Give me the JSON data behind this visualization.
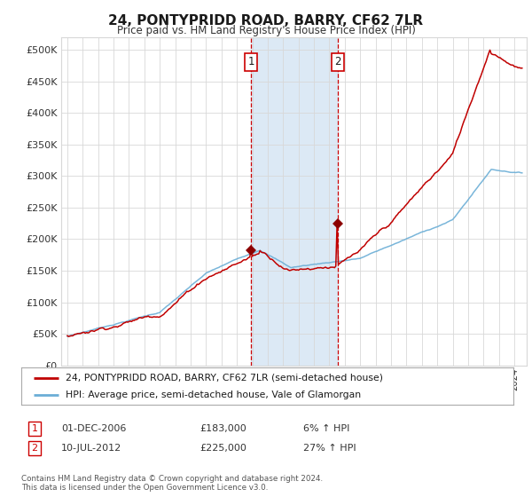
{
  "title": "24, PONTYPRIDD ROAD, BARRY, CF62 7LR",
  "subtitle": "Price paid vs. HM Land Registry's House Price Index (HPI)",
  "legend_line1": "24, PONTYPRIDD ROAD, BARRY, CF62 7LR (semi-detached house)",
  "legend_line2": "HPI: Average price, semi-detached house, Vale of Glamorgan",
  "footer": "Contains HM Land Registry data © Crown copyright and database right 2024.\nThis data is licensed under the Open Government Licence v3.0.",
  "sale1_label": "1",
  "sale1_date": "01-DEC-2006",
  "sale1_price": "£183,000",
  "sale1_hpi": "6% ↑ HPI",
  "sale2_label": "2",
  "sale2_date": "10-JUL-2012",
  "sale2_price": "£225,000",
  "sale2_hpi": "27% ↑ HPI",
  "sale1_x": 2006.92,
  "sale1_y": 183000,
  "sale2_x": 2012.53,
  "sale2_y": 225000,
  "hpi_color": "#6baed6",
  "price_color": "#c00000",
  "highlight_color": "#dce9f5",
  "marker_color": "#8b0000",
  "grid_color": "#d8d8d8",
  "background_color": "#ffffff",
  "ylim": [
    0,
    520000
  ],
  "yticks": [
    0,
    50000,
    100000,
    150000,
    200000,
    250000,
    300000,
    350000,
    400000,
    450000,
    500000
  ],
  "xlim_start": 1994.6,
  "xlim_end": 2024.8
}
